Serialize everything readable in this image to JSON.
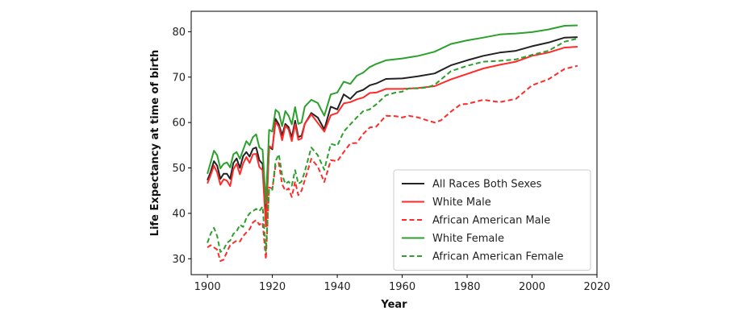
{
  "chart_data": {
    "type": "line",
    "title": "",
    "xlabel": "Year",
    "ylabel": "Life Expectancy at time of birth",
    "xlim": [
      1895,
      2020
    ],
    "ylim": [
      26.5,
      84.5
    ],
    "xticks": [
      1900,
      1920,
      1940,
      1960,
      1980,
      2000,
      2020
    ],
    "yticks": [
      30,
      40,
      50,
      60,
      70,
      80
    ],
    "grid": false,
    "legend_position": "lower-right",
    "series": [
      {
        "name": "All Races Both Sexes",
        "color": "#222222",
        "style": "solid",
        "x": [
          1900,
          1901,
          1902,
          1903,
          1904,
          1905,
          1906,
          1907,
          1908,
          1909,
          1910,
          1911,
          1912,
          1913,
          1914,
          1915,
          1916,
          1917,
          1918,
          1919,
          1920,
          1921,
          1922,
          1923,
          1924,
          1925,
          1926,
          1927,
          1928,
          1929,
          1930,
          1932,
          1934,
          1936,
          1938,
          1940,
          1942,
          1944,
          1946,
          1948,
          1950,
          1952,
          1955,
          1960,
          1965,
          1970,
          1975,
          1980,
          1985,
          1990,
          1995,
          2000,
          2005,
          2010,
          2014
        ],
        "values": [
          47.3,
          49.1,
          51.5,
          50.5,
          47.6,
          48.7,
          48.7,
          47.6,
          51.1,
          52.1,
          50.0,
          52.6,
          53.5,
          52.5,
          54.2,
          54.5,
          51.7,
          50.9,
          39.1,
          54.7,
          54.1,
          60.8,
          59.6,
          57.2,
          59.7,
          59.0,
          56.7,
          60.4,
          56.8,
          57.1,
          59.7,
          62.1,
          61.1,
          58.5,
          63.5,
          62.9,
          66.2,
          65.2,
          66.7,
          67.2,
          68.2,
          68.6,
          69.6,
          69.7,
          70.2,
          70.8,
          72.6,
          73.7,
          74.7,
          75.4,
          75.8,
          76.8,
          77.6,
          78.7,
          78.8
        ]
      },
      {
        "name": "White Male",
        "color": "#ff2a2a",
        "style": "solid",
        "x": [
          1900,
          1901,
          1902,
          1903,
          1904,
          1905,
          1906,
          1907,
          1908,
          1909,
          1910,
          1911,
          1912,
          1913,
          1914,
          1915,
          1916,
          1917,
          1918,
          1919,
          1920,
          1921,
          1922,
          1923,
          1924,
          1925,
          1926,
          1927,
          1928,
          1929,
          1930,
          1932,
          1934,
          1936,
          1938,
          1940,
          1942,
          1944,
          1946,
          1948,
          1950,
          1952,
          1955,
          1960,
          1965,
          1970,
          1975,
          1980,
          1985,
          1990,
          1995,
          2000,
          2005,
          2010,
          2014
        ],
        "values": [
          46.6,
          48.4,
          50.5,
          49.0,
          46.3,
          47.5,
          47.2,
          46.0,
          49.7,
          50.9,
          48.6,
          51.0,
          52.4,
          51.1,
          53.0,
          53.1,
          50.2,
          49.5,
          37.1,
          54.8,
          54.4,
          60.1,
          59.1,
          56.1,
          59.3,
          58.5,
          55.9,
          59.6,
          56.2,
          56.5,
          59.7,
          61.8,
          59.9,
          58.0,
          61.6,
          62.1,
          64.2,
          64.5,
          65.1,
          65.5,
          66.5,
          66.6,
          67.4,
          67.4,
          67.6,
          68.0,
          69.5,
          70.7,
          71.9,
          72.7,
          73.4,
          74.7,
          75.4,
          76.5,
          76.7
        ]
      },
      {
        "name": "African American Male",
        "color": "#ff2a2a",
        "style": "dashed",
        "x": [
          1900,
          1901,
          1902,
          1903,
          1904,
          1905,
          1906,
          1907,
          1908,
          1909,
          1910,
          1911,
          1912,
          1913,
          1914,
          1915,
          1916,
          1917,
          1918,
          1919,
          1920,
          1921,
          1922,
          1923,
          1924,
          1925,
          1926,
          1927,
          1928,
          1929,
          1930,
          1932,
          1934,
          1936,
          1938,
          1940,
          1942,
          1944,
          1946,
          1948,
          1950,
          1952,
          1955,
          1958,
          1960,
          1962,
          1965,
          1968,
          1970,
          1972,
          1975,
          1978,
          1980,
          1985,
          1990,
          1995,
          2000,
          2005,
          2010,
          2014
        ],
        "values": [
          32.5,
          33.0,
          32.5,
          32.0,
          29.5,
          29.8,
          31.5,
          33.0,
          33.5,
          34.0,
          33.8,
          35.0,
          35.8,
          36.5,
          38.0,
          38.5,
          37.5,
          38.0,
          29.9,
          45.7,
          45.5,
          50.5,
          51.1,
          46.4,
          45.0,
          45.5,
          43.6,
          47.0,
          44.0,
          45.0,
          47.3,
          52.0,
          50.3,
          46.9,
          51.7,
          51.5,
          53.5,
          55.4,
          55.5,
          57.5,
          58.9,
          59.1,
          61.5,
          61.4,
          61.1,
          61.5,
          61.1,
          60.4,
          60.0,
          60.5,
          62.4,
          64.0,
          64.1,
          65.0,
          64.5,
          65.2,
          68.2,
          69.5,
          71.8,
          72.5
        ]
      },
      {
        "name": "White Female",
        "color": "#2ca02c",
        "style": "solid",
        "x": [
          1900,
          1901,
          1902,
          1903,
          1904,
          1905,
          1906,
          1907,
          1908,
          1909,
          1910,
          1911,
          1912,
          1913,
          1914,
          1915,
          1916,
          1917,
          1918,
          1919,
          1920,
          1921,
          1922,
          1923,
          1924,
          1925,
          1926,
          1927,
          1928,
          1929,
          1930,
          1932,
          1934,
          1936,
          1938,
          1940,
          1942,
          1944,
          1946,
          1948,
          1950,
          1952,
          1955,
          1960,
          1965,
          1970,
          1975,
          1980,
          1985,
          1990,
          1995,
          2000,
          2005,
          2010,
          2014
        ],
        "values": [
          48.7,
          51.2,
          53.8,
          52.8,
          49.9,
          50.9,
          51.2,
          50.1,
          53.0,
          53.5,
          52.0,
          54.0,
          55.9,
          55.0,
          56.8,
          57.4,
          54.5,
          54.0,
          42.2,
          58.4,
          58.0,
          62.8,
          62.2,
          59.2,
          62.5,
          61.5,
          59.6,
          63.4,
          59.7,
          60.0,
          63.5,
          65.0,
          64.3,
          61.5,
          66.2,
          66.6,
          69.0,
          68.5,
          70.3,
          71.0,
          72.2,
          72.9,
          73.7,
          74.1,
          74.7,
          75.6,
          77.3,
          78.1,
          78.7,
          79.4,
          79.6,
          79.9,
          80.5,
          81.3,
          81.4
        ]
      },
      {
        "name": "African American Female",
        "color": "#2ca02c",
        "style": "dashed",
        "x": [
          1900,
          1901,
          1902,
          1903,
          1904,
          1905,
          1906,
          1907,
          1908,
          1909,
          1910,
          1911,
          1912,
          1913,
          1914,
          1915,
          1916,
          1917,
          1918,
          1919,
          1920,
          1921,
          1922,
          1923,
          1924,
          1925,
          1926,
          1927,
          1928,
          1929,
          1930,
          1932,
          1934,
          1936,
          1938,
          1940,
          1942,
          1944,
          1946,
          1948,
          1950,
          1952,
          1955,
          1958,
          1960,
          1962,
          1965,
          1968,
          1970,
          1975,
          1980,
          1985,
          1990,
          1995,
          2000,
          2005,
          2010,
          2014
        ],
        "values": [
          33.5,
          35.5,
          36.8,
          35.0,
          31.5,
          32.0,
          33.5,
          34.0,
          35.5,
          36.0,
          37.5,
          37.0,
          39.0,
          40.0,
          40.5,
          41.0,
          40.5,
          41.5,
          31.7,
          45.4,
          45.2,
          51.5,
          53.0,
          48.5,
          46.5,
          47.0,
          46.1,
          49.5,
          46.5,
          47.0,
          49.2,
          54.5,
          52.8,
          49.6,
          55.3,
          54.9,
          58.0,
          59.6,
          61.1,
          62.5,
          62.9,
          64.0,
          66.0,
          66.6,
          66.8,
          67.5,
          67.5,
          67.8,
          68.3,
          71.3,
          72.5,
          73.4,
          73.6,
          73.9,
          74.9,
          75.8,
          77.8,
          78.5
        ]
      }
    ]
  }
}
